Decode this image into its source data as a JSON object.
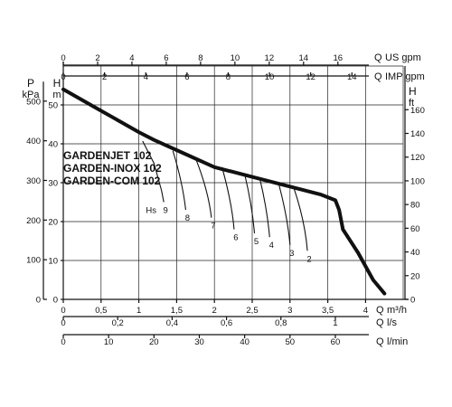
{
  "chart_data": {
    "type": "line",
    "title": "",
    "models": [
      "GARDENJET 102",
      "GARDEN-INOX 102",
      "GARDEN-COM 102"
    ],
    "axes": {
      "x_q_m3h": {
        "label_q": "Q",
        "unit": "m³/h",
        "min": 0,
        "max": 4.5,
        "ticks": [
          "0",
          "0,5",
          "1",
          "1,5",
          "2",
          "2,5",
          "3",
          "3,5",
          "4"
        ]
      },
      "x_q_ls": {
        "label_q": "Q",
        "unit": "l/s",
        "ticks": [
          "0",
          "0,2",
          "0,4",
          "0,6",
          "0,8",
          "1"
        ]
      },
      "x_q_lmin": {
        "label_q": "Q",
        "unit": "l/min",
        "ticks": [
          "0",
          "10",
          "20",
          "30",
          "40",
          "50",
          "60"
        ]
      },
      "x_q_usgpm": {
        "label_q": "Q",
        "unit": "US gpm",
        "ticks": [
          "0",
          "2",
          "4",
          "6",
          "8",
          "10",
          "12",
          "14",
          "16"
        ]
      },
      "x_q_impgpm": {
        "label_q": "Q",
        "unit": "IMP gpm",
        "ticks": [
          "0",
          "2",
          "4",
          "6",
          "8",
          "10",
          "12",
          "14"
        ]
      },
      "y_h_m": {
        "label": "H",
        "unit": "m",
        "min": 0,
        "max": 55,
        "ticks": [
          "0",
          "10",
          "20",
          "30",
          "40",
          "50"
        ]
      },
      "y_p_kpa": {
        "label": "P",
        "unit": "kPa",
        "ticks": [
          "0",
          "100",
          "200",
          "300",
          "400",
          "500"
        ]
      },
      "y_h_ft": {
        "label": "H",
        "unit": "ft",
        "ticks": [
          "0",
          "20",
          "40",
          "60",
          "80",
          "100",
          "120",
          "140",
          "160"
        ]
      }
    },
    "grid": true,
    "main_curve": {
      "x": [
        0,
        0.5,
        1.0,
        1.2,
        1.6,
        2.0,
        2.5,
        3.0,
        3.4,
        3.6,
        3.65,
        3.7,
        3.9,
        4.1,
        4.25
      ],
      "y": [
        54,
        48.5,
        43,
        41,
        37.5,
        34,
        31.5,
        29,
        27,
        25.5,
        23,
        18,
        12,
        5,
        1.5
      ]
    },
    "suction_curves": {
      "label": "Hs",
      "series": [
        {
          "name": "9",
          "x": [
            1.05,
            1.2,
            1.3,
            1.33
          ],
          "y": [
            40.7,
            35,
            28,
            25
          ]
        },
        {
          "name": "8",
          "x": [
            1.45,
            1.58,
            1.62
          ],
          "y": [
            38.2,
            30,
            23
          ]
        },
        {
          "name": "7",
          "x": [
            1.75,
            1.92,
            1.96
          ],
          "y": [
            36.3,
            28,
            21
          ]
        },
        {
          "name": "6",
          "x": [
            2.1,
            2.23,
            2.26
          ],
          "y": [
            34,
            25,
            18
          ]
        },
        {
          "name": "5",
          "x": [
            2.4,
            2.5,
            2.53
          ],
          "y": [
            32.2,
            24,
            17
          ]
        },
        {
          "name": "4",
          "x": [
            2.6,
            2.7,
            2.73
          ],
          "y": [
            31.1,
            23,
            16
          ]
        },
        {
          "name": "3",
          "x": [
            2.85,
            2.97,
            3.0
          ],
          "y": [
            29.8,
            21,
            14
          ]
        },
        {
          "name": "2",
          "x": [
            3.05,
            3.2,
            3.23
          ],
          "y": [
            28.7,
            20,
            12.5
          ]
        }
      ]
    }
  }
}
